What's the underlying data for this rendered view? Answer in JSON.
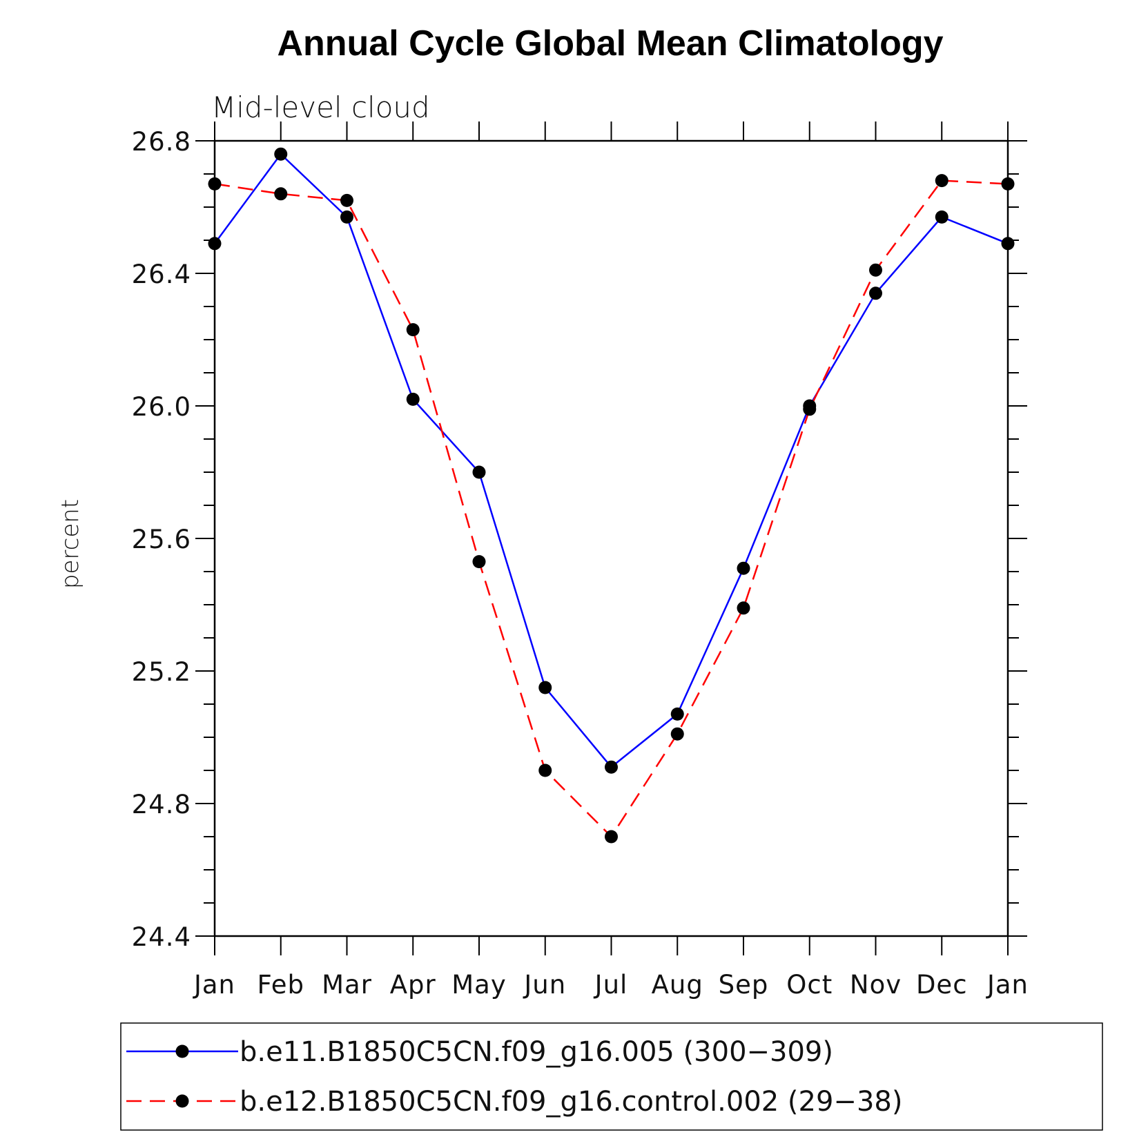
{
  "chart_data": {
    "type": "line",
    "title": "Annual Cycle Global Mean Climatology",
    "subtitle": "Mid-level cloud",
    "xlabel": "",
    "ylabel": "percent",
    "ylim": [
      24.4,
      26.8
    ],
    "yticks": [
      "24.4",
      "24.8",
      "25.2",
      "25.6",
      "26.0",
      "26.4",
      "26.8"
    ],
    "categories": [
      "Jan",
      "Feb",
      "Mar",
      "Apr",
      "May",
      "Jun",
      "Jul",
      "Aug",
      "Sep",
      "Oct",
      "Nov",
      "Dec",
      "Jan"
    ],
    "series": [
      {
        "name": "b.e11.B1850C5CN.f09_g16.005 (300−309)",
        "color": "#0000ff",
        "dash": "solid",
        "values": [
          26.49,
          26.76,
          26.57,
          26.02,
          25.8,
          25.15,
          24.91,
          25.07,
          25.51,
          26.0,
          26.34,
          26.57,
          26.49
        ]
      },
      {
        "name": "b.e12.B1850C5CN.f09_g16.control.002 (29−38)",
        "color": "#ff0000",
        "dash": "dashed",
        "values": [
          26.67,
          26.64,
          26.62,
          26.23,
          25.53,
          24.9,
          24.7,
          25.01,
          25.39,
          25.99,
          26.41,
          26.68,
          26.67
        ]
      }
    ],
    "marker": "filled-circle",
    "marker_color": "#000000",
    "grid": false,
    "legend_placement": "bottom"
  }
}
